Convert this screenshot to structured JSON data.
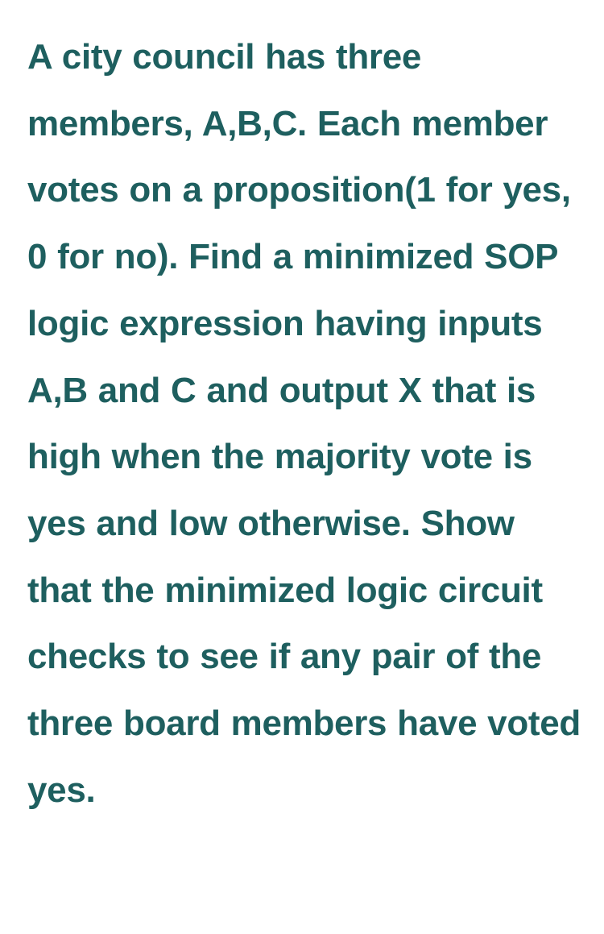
{
  "question": {
    "text": "A city council has three members, A,B,C. Each member votes  on a proposition(1 for yes, 0 for no). Find a minimized SOP logic expression having inputs A,B and C  and output X that is high when the majority vote is yes and low  otherwise. Show that the minimized logic circuit checks to see if any pair of the three board members have voted yes.",
    "text_color": "#1e5f5f",
    "background_color": "#ffffff",
    "font_size": 44,
    "font_weight": "bold",
    "line_height": 1.88
  }
}
